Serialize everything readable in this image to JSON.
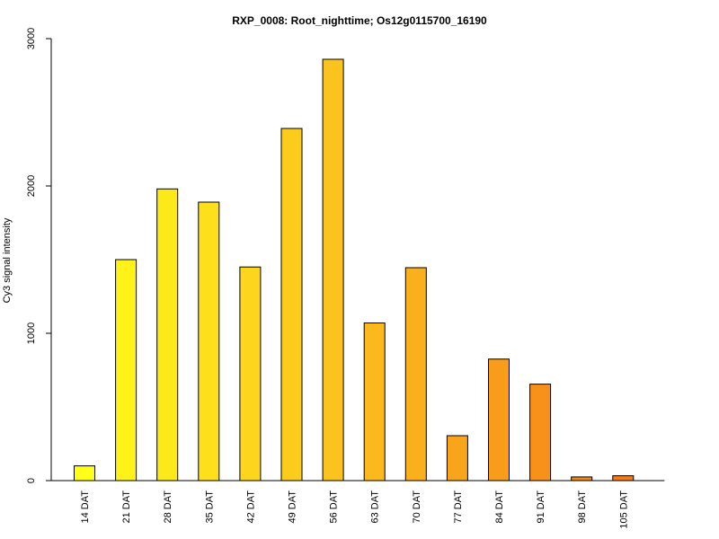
{
  "chart_data": {
    "type": "bar",
    "title": "RXP_0008: Root_nighttime; Os12g0115700_16190",
    "xlabel": "",
    "ylabel": "Cy3 signal intensity",
    "ylim": [
      0,
      3000
    ],
    "yticks": [
      0,
      1000,
      2000,
      3000
    ],
    "grid": false,
    "legend": "none",
    "categories": [
      "14 DAT",
      "21 DAT",
      "28 DAT",
      "35 DAT",
      "42 DAT",
      "49 DAT",
      "56 DAT",
      "63 DAT",
      "70 DAT",
      "77 DAT",
      "84 DAT",
      "91 DAT",
      "98 DAT",
      "105 DAT"
    ],
    "values": [
      100,
      1500,
      1980,
      1890,
      1450,
      2390,
      2860,
      1070,
      1445,
      305,
      825,
      655,
      25,
      33
    ],
    "colors": [
      "#FFFF18",
      "#FEF219",
      "#FDE81A",
      "#FDDF1B",
      "#FCD61C",
      "#FCCC1D",
      "#FBC31E",
      "#FBB91D",
      "#FAAF1D",
      "#F9A51C",
      "#F99B1B",
      "#F8911A",
      "#F78619",
      "#F67B18"
    ]
  }
}
